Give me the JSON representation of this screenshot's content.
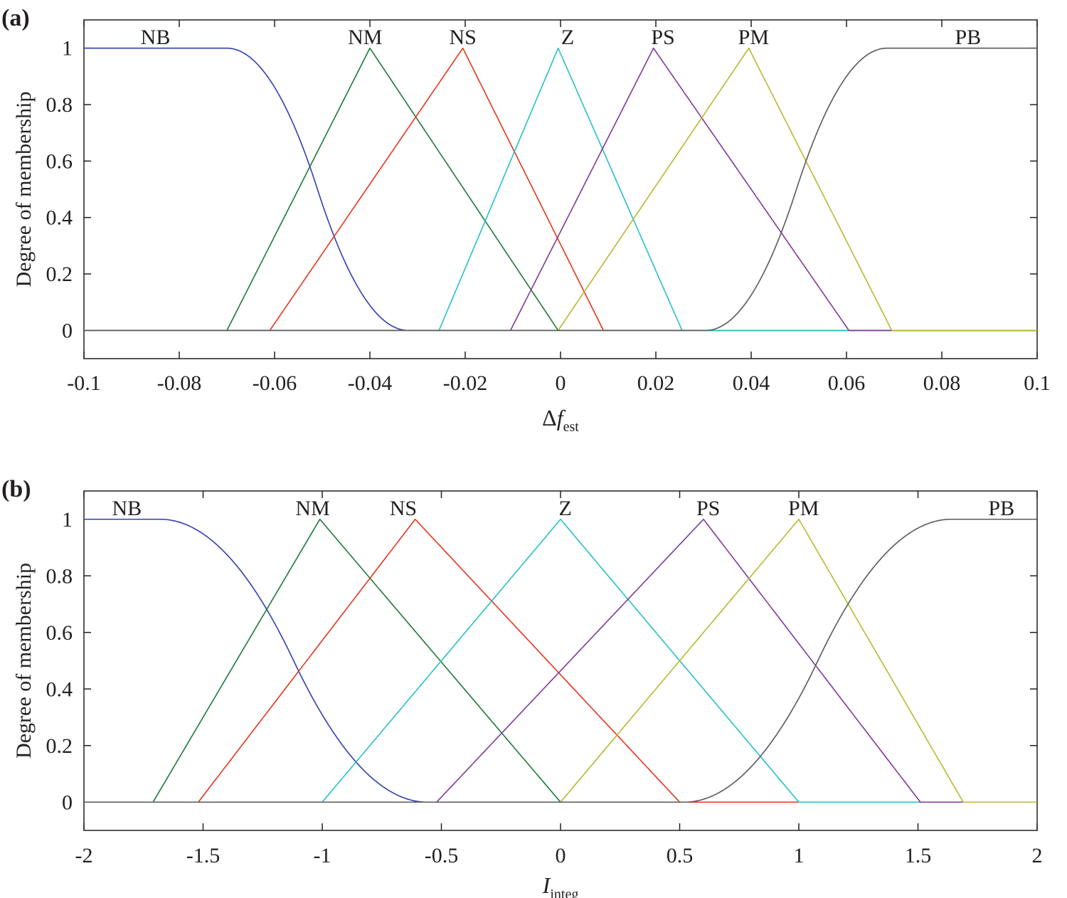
{
  "chart_data": [
    {
      "panel_label": "(a)",
      "type": "line",
      "ylabel": "Degree of membership",
      "xlabel": {
        "main": "Δf",
        "sub": "est"
      },
      "xlim": [
        -0.1,
        0.1
      ],
      "ylim": [
        -0.1,
        1.1
      ],
      "xticks": [
        -0.1,
        -0.08,
        -0.06,
        -0.04,
        -0.02,
        0,
        0.02,
        0.04,
        0.06,
        0.08,
        0.1
      ],
      "xtick_labels": [
        "-0.1",
        "-0.08",
        "-0.06",
        "-0.04",
        "-0.02",
        "0",
        "0.02",
        "0.04",
        "0.06",
        "0.08",
        "0.1"
      ],
      "yticks": [
        0,
        0.2,
        0.4,
        0.6,
        0.8,
        1
      ],
      "ytick_labels": [
        "0",
        "0.2",
        "0.4",
        "0.6",
        "0.8",
        "1"
      ],
      "series": [
        {
          "name": "NB",
          "label_x": -0.085,
          "color": "#3040b0",
          "kind": "zmf",
          "params": [
            -0.07,
            -0.032
          ],
          "x": [
            -0.1,
            0.1
          ]
        },
        {
          "name": "NM",
          "label_x": -0.041,
          "color": "#1e7a3a",
          "kind": "tri",
          "params": [
            -0.07,
            -0.04,
            -0.0005
          ],
          "x": [
            -0.1,
            0.1
          ]
        },
        {
          "name": "NS",
          "label_x": -0.0205,
          "color": "#e8341c",
          "kind": "tri",
          "params": [
            -0.061,
            -0.0205,
            0.009
          ],
          "x": [
            -0.1,
            0.1
          ]
        },
        {
          "name": "Z",
          "label_x": 0.0015,
          "color": "#26c0c8",
          "kind": "tri",
          "params": [
            -0.0255,
            -0.0005,
            0.0255
          ],
          "x": [
            -0.1,
            0.1
          ]
        },
        {
          "name": "PS",
          "label_x": 0.0215,
          "color": "#7d3a9a",
          "kind": "tri",
          "params": [
            -0.0105,
            0.0195,
            0.0605
          ],
          "x": [
            -0.1,
            0.1
          ]
        },
        {
          "name": "PM",
          "label_x": 0.0405,
          "color": "#b8b832",
          "kind": "tri",
          "params": [
            -0.0005,
            0.0395,
            0.0695
          ],
          "x": [
            -0.1,
            0.1
          ]
        },
        {
          "name": "PB",
          "label_x": 0.0855,
          "color": "#5a5a5a",
          "kind": "smf",
          "params": [
            0.0305,
            0.0685
          ],
          "x": [
            -0.1,
            0.1
          ]
        }
      ]
    },
    {
      "panel_label": "(b)",
      "type": "line",
      "ylabel": "Degree of membership",
      "xlabel": {
        "main": "I",
        "sub": "integ"
      },
      "xlim": [
        -2,
        2
      ],
      "ylim": [
        -0.1,
        1.1
      ],
      "xticks": [
        -2,
        -1.5,
        -1,
        -0.5,
        0,
        0.5,
        1,
        1.5,
        2
      ],
      "xtick_labels": [
        "-2",
        "-1.5",
        "-1",
        "-0.5",
        "0",
        "0.5",
        "1",
        "1.5",
        "2"
      ],
      "yticks": [
        0,
        0.2,
        0.4,
        0.6,
        0.8,
        1
      ],
      "ytick_labels": [
        "0",
        "0.2",
        "0.4",
        "0.6",
        "0.8",
        "1"
      ],
      "series": [
        {
          "name": "NB",
          "label_x": -1.82,
          "color": "#3040b0",
          "kind": "zmf",
          "params": [
            -1.68,
            -0.56
          ],
          "x": [
            -2,
            2
          ]
        },
        {
          "name": "NM",
          "label_x": -1.04,
          "color": "#1e7a3a",
          "kind": "tri",
          "params": [
            -1.71,
            -1.01,
            0.0
          ],
          "x": [
            -2,
            2
          ]
        },
        {
          "name": "NS",
          "label_x": -0.66,
          "color": "#e8341c",
          "kind": "tri",
          "params": [
            -1.52,
            -0.61,
            0.5
          ],
          "x": [
            -2,
            2
          ]
        },
        {
          "name": "Z",
          "label_x": 0.02,
          "color": "#26c0c8",
          "kind": "tri",
          "params": [
            -1.0,
            0.0,
            1.0
          ],
          "x": [
            -2,
            2
          ]
        },
        {
          "name": "PS",
          "label_x": 0.62,
          "color": "#7d3a9a",
          "kind": "tri",
          "params": [
            -0.52,
            0.6,
            1.51
          ],
          "x": [
            -2,
            2
          ]
        },
        {
          "name": "PM",
          "label_x": 1.02,
          "color": "#b8b832",
          "kind": "tri",
          "params": [
            0.0,
            1.0,
            1.69
          ],
          "x": [
            -2,
            2
          ]
        },
        {
          "name": "PB",
          "label_x": 1.85,
          "color": "#5a5a5a",
          "kind": "smf",
          "params": [
            0.52,
            1.64
          ],
          "x": [
            -2,
            2
          ]
        }
      ]
    }
  ]
}
